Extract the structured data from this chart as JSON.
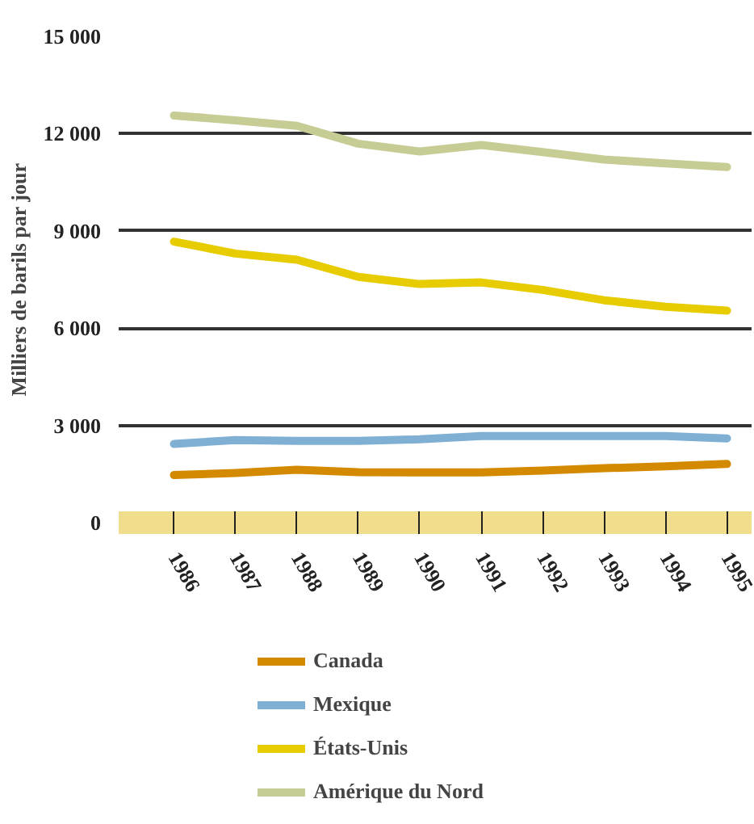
{
  "chart_data": {
    "type": "line",
    "ylabel": "Milliers de barils par jour",
    "x": [
      1986,
      1987,
      1988,
      1989,
      1990,
      1991,
      1992,
      1993,
      1994,
      1995
    ],
    "xlim": [
      1985.1,
      1995.4
    ],
    "xticks": [
      1986,
      1987,
      1988,
      1989,
      1990,
      1991,
      1992,
      1993,
      1994,
      1995
    ],
    "ylim": [
      0,
      15000
    ],
    "yticks": [
      {
        "value": 0,
        "label": "0"
      },
      {
        "value": 3000,
        "label": "3 000"
      },
      {
        "value": 6000,
        "label": "6 000"
      },
      {
        "value": 9000,
        "label": "9 000"
      },
      {
        "value": 12000,
        "label": "12 000"
      },
      {
        "value": 15000,
        "label": "15 000"
      }
    ],
    "grid": "y",
    "legend": "bottom",
    "marker": "none",
    "line_style": "solid",
    "series": [
      {
        "name": "Canada",
        "color": "#d48a00",
        "values": [
          1470,
          1530,
          1630,
          1560,
          1550,
          1550,
          1610,
          1680,
          1740,
          1810
        ]
      },
      {
        "name": "Mexique",
        "color": "#7fb0d4",
        "values": [
          2430,
          2550,
          2520,
          2520,
          2570,
          2670,
          2670,
          2670,
          2670,
          2600
        ]
      },
      {
        "name": "États-Unis",
        "color": "#e6cc00",
        "values": [
          8670,
          8300,
          8110,
          7580,
          7360,
          7410,
          7180,
          6860,
          6660,
          6540
        ]
      },
      {
        "name": "Amérique du Nord",
        "color": "#c7cc95",
        "values": [
          12560,
          12410,
          12240,
          11690,
          11450,
          11650,
          11430,
          11200,
          11080,
          10970
        ]
      }
    ]
  }
}
